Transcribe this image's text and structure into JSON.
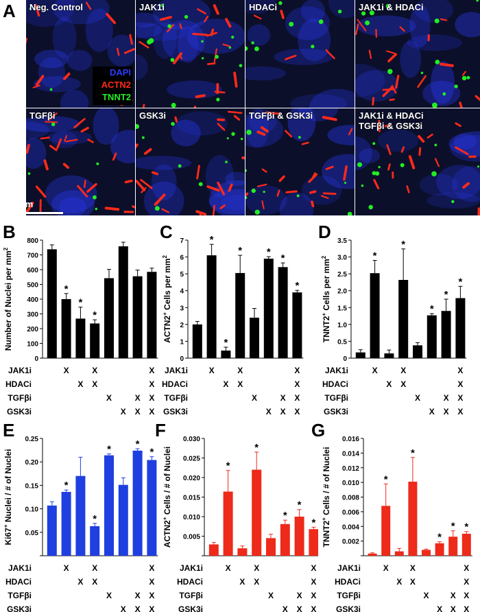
{
  "letters": {
    "A": "A",
    "B": "B",
    "C": "C",
    "D": "D",
    "E": "E",
    "F": "F",
    "G": "G"
  },
  "image_panels": [
    {
      "label": "Neg. Control"
    },
    {
      "label": "JAK1i"
    },
    {
      "label": "HDACi"
    },
    {
      "label": "JAK1i & HDACi"
    },
    {
      "label": "TGFβi"
    },
    {
      "label": "GSK3i"
    },
    {
      "label": "TGFβi & GSK3i"
    },
    {
      "label": "JAK1i & HDACi\nTGFβi & GSK3i"
    }
  ],
  "stain_legend": {
    "dapi": "DAPI",
    "actn2": "ACTN2",
    "tnnt2": "TNNT2"
  },
  "scale_bar": "1mm",
  "colors": {
    "dapi": "#2b3cff",
    "actn2": "#ff2a1a",
    "tnnt2": "#22ee22",
    "bar_black": "#000000",
    "bar_blue": "#1f3fe0",
    "bar_red": "#ee2a1a",
    "tile_bg": "#0b0f2a"
  },
  "condition_rows": [
    "JAK1i",
    "HDACi",
    "TGFβi",
    "GSK3i"
  ],
  "treatment_matrix": [
    [
      false,
      false,
      false,
      false
    ],
    [
      true,
      false,
      false,
      false
    ],
    [
      false,
      true,
      false,
      false
    ],
    [
      true,
      true,
      false,
      false
    ],
    [
      false,
      false,
      true,
      false
    ],
    [
      false,
      false,
      false,
      true
    ],
    [
      false,
      false,
      true,
      true
    ],
    [
      true,
      true,
      true,
      true
    ]
  ],
  "mark": "X",
  "significance_marker": "*",
  "chart_data": [
    {
      "id": "B",
      "type": "bar",
      "bar_color": "black",
      "ylabel": "Number of Nuclei per mm",
      "ylabel_sup": "2",
      "ylim": [
        0,
        800
      ],
      "yticks": [
        "0",
        "100",
        "200",
        "300",
        "400",
        "500",
        "600",
        "700",
        "800"
      ],
      "values": [
        738,
        400,
        268,
        235,
        542,
        758,
        555,
        585
      ],
      "errors": [
        30,
        38,
        78,
        25,
        60,
        28,
        42,
        25
      ],
      "significant": [
        false,
        true,
        true,
        true,
        false,
        false,
        false,
        false
      ]
    },
    {
      "id": "C",
      "type": "bar",
      "bar_color": "black",
      "ylabel": "ACTN2",
      "ylabel_sup": "+",
      "ylabel_rest": " Cells per mm",
      "ylabel_sup2": "2",
      "ylim": [
        0,
        7
      ],
      "yticks": [
        "0",
        "1",
        "2",
        "3",
        "4",
        "5",
        "6",
        "7"
      ],
      "values": [
        2.0,
        6.1,
        0.45,
        5.05,
        2.4,
        5.9,
        5.4,
        3.9
      ],
      "errors": [
        0.18,
        0.65,
        0.2,
        1.05,
        0.55,
        0.12,
        0.25,
        0.12
      ],
      "significant": [
        false,
        true,
        true,
        true,
        false,
        true,
        true,
        true
      ]
    },
    {
      "id": "D",
      "type": "bar",
      "bar_color": "black",
      "ylabel": "TNNT2",
      "ylabel_sup": "+",
      "ylabel_rest": " Cells per mm",
      "ylabel_sup2": "2",
      "ylim": [
        0,
        3.5
      ],
      "yticks": [
        "0",
        "0.5",
        "1.0",
        "1.5",
        "2.0",
        "2.5",
        "3.0",
        "3.5"
      ],
      "values": [
        0.17,
        2.52,
        0.14,
        2.32,
        0.38,
        1.27,
        1.4,
        1.78
      ],
      "errors": [
        0.08,
        0.38,
        0.1,
        0.92,
        0.08,
        0.05,
        0.35,
        0.35
      ],
      "significant": [
        false,
        true,
        false,
        true,
        false,
        true,
        true,
        true
      ]
    },
    {
      "id": "E",
      "type": "bar",
      "bar_color": "blue",
      "ylabel": "Ki67",
      "ylabel_sup": "+",
      "ylabel_rest": " Nuclei / # of Nuclei",
      "ylim": [
        0,
        0.25
      ],
      "yticks": [
        "",
        "0.05",
        "0.10",
        "0.15",
        "0.20",
        "0.25"
      ],
      "values": [
        0.107,
        0.136,
        0.17,
        0.063,
        0.214,
        0.151,
        0.224,
        0.204
      ],
      "errors": [
        0.008,
        0.004,
        0.04,
        0.006,
        0.003,
        0.015,
        0.004,
        0.007
      ],
      "significant": [
        false,
        true,
        false,
        true,
        true,
        false,
        true,
        true
      ]
    },
    {
      "id": "F",
      "type": "bar",
      "bar_color": "red",
      "ylabel": "ACTN2",
      "ylabel_sup": "+",
      "ylabel_rest": " Cells / # of Nuclei",
      "ylim": [
        0,
        0.03
      ],
      "yticks": [
        "",
        "0.005",
        "0.010",
        "0.015",
        "0.020",
        "0.025",
        "0.030"
      ],
      "values": [
        0.0029,
        0.0164,
        0.0019,
        0.022,
        0.0045,
        0.0081,
        0.01,
        0.0068
      ],
      "errors": [
        0.0005,
        0.0054,
        0.0006,
        0.0045,
        0.001,
        0.001,
        0.0018,
        0.0005
      ],
      "significant": [
        false,
        true,
        false,
        true,
        false,
        true,
        true,
        true
      ]
    },
    {
      "id": "G",
      "type": "bar",
      "bar_color": "red",
      "ylabel": "TNNT2",
      "ylabel_sup": "+",
      "ylabel_rest": " Cells / # of Nuclei",
      "ylim": [
        0,
        0.016
      ],
      "yticks": [
        "",
        "0.002",
        "0.004",
        "0.006",
        "0.008",
        "0.010",
        "0.012",
        "0.014",
        "0.016"
      ],
      "values": [
        0.0003,
        0.0068,
        0.0006,
        0.0101,
        0.0008,
        0.0017,
        0.0026,
        0.003
      ],
      "errors": [
        0.0001,
        0.003,
        0.0004,
        0.0033,
        0.0001,
        0.0002,
        0.0008,
        0.0003
      ],
      "significant": [
        false,
        true,
        false,
        true,
        false,
        true,
        true,
        true
      ]
    }
  ]
}
